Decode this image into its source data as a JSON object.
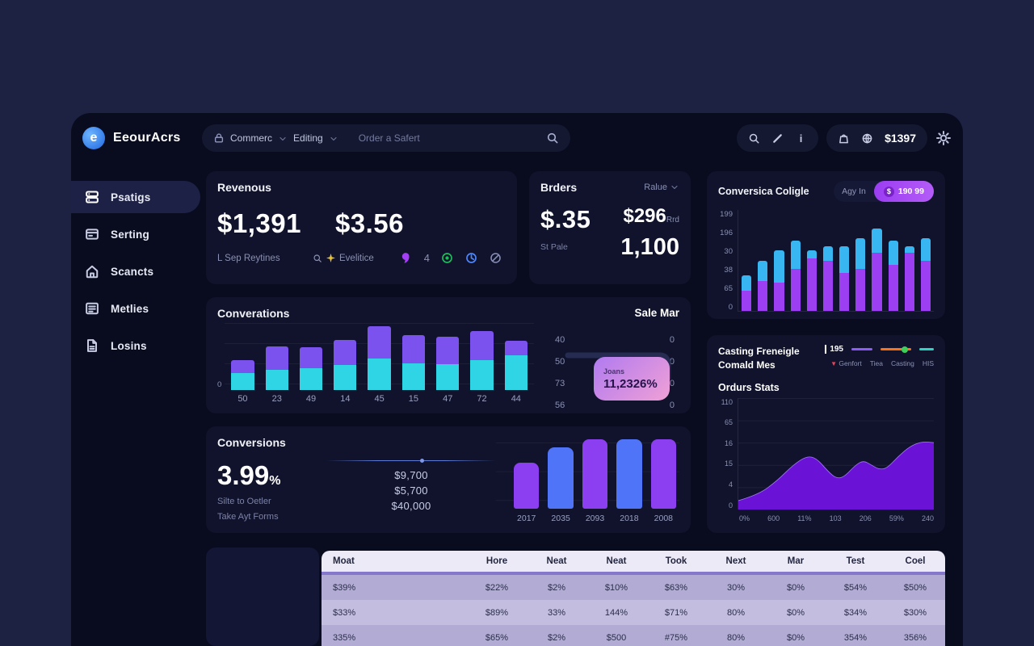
{
  "header": {
    "logo_text": "EeourAcrs",
    "logo_letter": "e",
    "nav_item1": "Commerc",
    "nav_item2": "Editing",
    "search_placeholder": "Order a Safert",
    "wallet_amount": "$1397"
  },
  "sidebar": {
    "items": [
      {
        "id": "psatigs",
        "label": "Psatigs",
        "icon": "layers-icon",
        "active": true
      },
      {
        "id": "serting",
        "label": "Serting",
        "icon": "card-icon",
        "active": false
      },
      {
        "id": "scancts",
        "label": "Scancts",
        "icon": "home-icon",
        "active": false
      },
      {
        "id": "metlies",
        "label": "Metlies",
        "icon": "news-icon",
        "active": false
      },
      {
        "id": "losins",
        "label": "Losins",
        "icon": "file-icon",
        "active": false
      }
    ]
  },
  "cards": {
    "revenue": {
      "title": "Revenous",
      "value1": "$1,391",
      "value2": "$3.56",
      "sub1": "L Sep Reytines",
      "sub2": "Evelitice"
    },
    "orders": {
      "title": "Brders",
      "dropdown": "Ralue",
      "value1": "$.35",
      "sub1": "St Pale",
      "value2": "$296",
      "value2_suffix": "Rrd",
      "value3": "1,100"
    },
    "conversica": {
      "title": "Conversica Coligle",
      "button_ghost": "Agy In",
      "button_pill": "190 99",
      "coin_symbol": "$"
    },
    "conversations": {
      "title": "Converations",
      "zero_label": "0",
      "sale_header": "Sale Mar",
      "sale_rows": [
        [
          "40",
          "0"
        ],
        [
          "50",
          "0"
        ],
        [
          "73",
          "0"
        ],
        [
          "56",
          "0"
        ]
      ],
      "badge_label": "Joans",
      "badge_value": "11,2326%"
    },
    "conversions": {
      "title": "Conversions",
      "big_value": "3.99",
      "big_suffix": "%",
      "line1": "Silte to Oetler",
      "line2": "Take Ayt Forms",
      "values": [
        "$9,700",
        "$5,700",
        "$40,000"
      ]
    },
    "casting": {
      "title_line1": "Casting Freneigle",
      "title_line2": "Comald Mes",
      "legend_value": "195",
      "legend_items": [
        "Genfort",
        "Tiea",
        "Casting",
        "HIS"
      ],
      "subtitle": "Ordurs Stats"
    }
  },
  "table": {
    "headers": [
      "Moat",
      "Hore",
      "Neat",
      "Neat",
      "Took",
      "Next",
      "Mar",
      "Test",
      "Coel"
    ],
    "rows": [
      [
        "$39%",
        "$22%",
        "$2%",
        "$10%",
        "$63%",
        "30%",
        "$0%",
        "$54%",
        "$50%"
      ],
      [
        "$33%",
        "$89%",
        "33%",
        "144%",
        "$71%",
        "80%",
        "$0%",
        "$34%",
        "$30%"
      ],
      [
        "335%",
        "$65%",
        "$2%",
        "$500",
        "#75%",
        "80%",
        "$0%",
        "354%",
        "356%"
      ]
    ]
  },
  "chart_data": [
    {
      "id": "conversica-stacked-bars",
      "type": "bar",
      "stacked": true,
      "title": "Conversica Coligle",
      "y_ticks": [
        "199",
        "196",
        "30",
        "38",
        "65",
        "0"
      ],
      "ylim": [
        0,
        100
      ],
      "grid": false,
      "categories": [
        "",
        "",
        "",
        "",
        "",
        "",
        "",
        "",
        "",
        "",
        "",
        ""
      ],
      "series": [
        {
          "name": "bottom",
          "color": "#9c3ff2",
          "values": [
            20,
            30,
            28,
            42,
            52,
            50,
            38,
            42,
            58,
            46,
            58,
            50
          ]
        },
        {
          "name": "top",
          "color": "#38b6f2",
          "values": [
            15,
            20,
            32,
            28,
            8,
            14,
            26,
            30,
            24,
            24,
            6,
            22
          ]
        }
      ]
    },
    {
      "id": "conversations-stacked-bars",
      "type": "bar",
      "stacked": true,
      "title": "Converations",
      "categories": [
        "50",
        "23",
        "49",
        "14",
        "45",
        "15",
        "47",
        "72",
        "44"
      ],
      "ylim": [
        0,
        100
      ],
      "grid": true,
      "series": [
        {
          "name": "bottom",
          "color": "#2fd5e4",
          "values": [
            25,
            30,
            33,
            37,
            47,
            40,
            39,
            44,
            52
          ]
        },
        {
          "name": "top",
          "color": "#7b52ee",
          "values": [
            20,
            35,
            31,
            38,
            48,
            42,
            41,
            44,
            21
          ]
        }
      ]
    },
    {
      "id": "years-bars",
      "type": "bar",
      "stacked": false,
      "categories": [
        "2017",
        "2035",
        "2093",
        "2018",
        "2008"
      ],
      "values": [
        55,
        73,
        85,
        97,
        96
      ],
      "bar_colors": [
        "#8b3ff0",
        "#4f74f7",
        "#8b3ff0",
        "#4f74f7",
        "#8b3ff0"
      ],
      "ylim": [
        0,
        100
      ],
      "grid": true
    },
    {
      "id": "ordurs-stats-area",
      "type": "area",
      "title": "Ordurs Stats",
      "y_ticks": [
        "110",
        "65",
        "16",
        "15",
        "4",
        "0"
      ],
      "x_ticks": [
        "0%",
        "600",
        "11%",
        "103",
        "206",
        "59%",
        "240"
      ],
      "ylim": [
        0,
        100
      ],
      "fill_color": "#6a13d6",
      "edge_color": "#a678ff",
      "points": [
        [
          0,
          8
        ],
        [
          10,
          13
        ],
        [
          20,
          26
        ],
        [
          28,
          40
        ],
        [
          35,
          48
        ],
        [
          40,
          46
        ],
        [
          46,
          34
        ],
        [
          50,
          28
        ],
        [
          54,
          29
        ],
        [
          60,
          40
        ],
        [
          64,
          44
        ],
        [
          68,
          40
        ],
        [
          72,
          36
        ],
        [
          76,
          37
        ],
        [
          82,
          48
        ],
        [
          88,
          57
        ],
        [
          94,
          61
        ],
        [
          100,
          60
        ]
      ],
      "legend": {
        "colors": [
          "#8b5cf6",
          "#f97316",
          "#2dd4bf"
        ],
        "position": "top-right"
      }
    }
  ]
}
